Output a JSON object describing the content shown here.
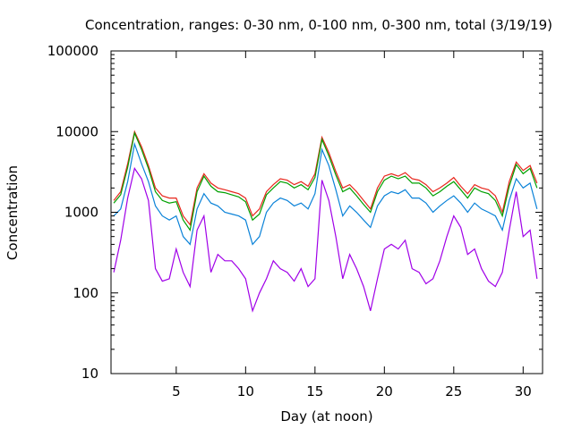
{
  "chart_data": {
    "type": "line",
    "title": "Concentration, ranges: 0-30 nm, 0-100 nm, 0-300 nm, total (3/19/19)",
    "xlabel": "Day (at noon)",
    "ylabel": "Concentration",
    "xlim": [
      0.3,
      31.4
    ],
    "ylim": [
      10,
      100000
    ],
    "yscale": "log",
    "grid": false,
    "legend": "none",
    "x_ticks": [
      5,
      10,
      15,
      20,
      25,
      30
    ],
    "y_ticks": [
      10,
      100,
      1000,
      10000,
      100000
    ],
    "x": [
      0.5,
      1.0,
      1.5,
      2.0,
      2.5,
      3.0,
      3.5,
      4.0,
      4.5,
      5.0,
      5.5,
      6.0,
      6.5,
      7.0,
      7.5,
      8.0,
      8.5,
      9.0,
      9.5,
      10.0,
      10.5,
      11.0,
      11.5,
      12.0,
      12.5,
      13.0,
      13.5,
      14.0,
      14.5,
      15.0,
      15.5,
      16.0,
      16.5,
      17.0,
      17.5,
      18.0,
      18.5,
      19.0,
      19.5,
      20.0,
      20.5,
      21.0,
      21.5,
      22.0,
      22.5,
      23.0,
      23.5,
      24.0,
      24.5,
      25.0,
      25.5,
      26.0,
      26.5,
      27.0,
      27.5,
      28.0,
      28.5,
      29.0,
      29.5,
      30.0,
      30.5,
      31.0
    ],
    "series": [
      {
        "color": "#e8261c",
        "values": [
          1400,
          1800,
          4000,
          10000,
          6500,
          3800,
          2000,
          1600,
          1500,
          1500,
          900,
          700,
          2000,
          3000,
          2300,
          2000,
          1900,
          1800,
          1700,
          1500,
          900,
          1100,
          1800,
          2200,
          2600,
          2500,
          2200,
          2400,
          2100,
          3000,
          8500,
          5500,
          3200,
          2000,
          2200,
          1800,
          1400,
          1100,
          2000,
          2800,
          3000,
          2800,
          3100,
          2600,
          2500,
          2200,
          1800,
          2000,
          2300,
          2700,
          2100,
          1700,
          2200,
          2000,
          1900,
          1600,
          1000,
          2400,
          4200,
          3300,
          3800,
          2300
        ]
      },
      {
        "color": "#00a000",
        "values": [
          1300,
          1650,
          3600,
          9600,
          6000,
          3500,
          1800,
          1400,
          1300,
          1350,
          800,
          600,
          1800,
          2800,
          2100,
          1800,
          1750,
          1650,
          1550,
          1350,
          800,
          950,
          1650,
          2000,
          2400,
          2300,
          2000,
          2200,
          1900,
          2700,
          8000,
          5000,
          2900,
          1800,
          2000,
          1600,
          1250,
          1000,
          1800,
          2500,
          2800,
          2600,
          2800,
          2300,
          2300,
          2000,
          1600,
          1800,
          2100,
          2400,
          1900,
          1500,
          2000,
          1800,
          1700,
          1400,
          900,
          2100,
          3900,
          3000,
          3500,
          2000
        ]
      },
      {
        "color": "#0a82d8",
        "values": [
          900,
          1100,
          2400,
          7000,
          4000,
          2400,
          1200,
          900,
          800,
          900,
          500,
          400,
          1100,
          1700,
          1300,
          1200,
          1000,
          950,
          900,
          800,
          400,
          500,
          1000,
          1300,
          1500,
          1400,
          1200,
          1300,
          1100,
          1700,
          6000,
          3800,
          1900,
          900,
          1200,
          1000,
          800,
          650,
          1200,
          1600,
          1800,
          1700,
          1900,
          1500,
          1500,
          1300,
          1000,
          1200,
          1400,
          1600,
          1300,
          1000,
          1300,
          1100,
          1000,
          900,
          600,
          1400,
          2600,
          2000,
          2300,
          1100
        ]
      },
      {
        "color": "#a000e8",
        "values": [
          180,
          450,
          1500,
          3500,
          2600,
          1400,
          200,
          140,
          150,
          350,
          180,
          120,
          600,
          900,
          180,
          300,
          250,
          250,
          200,
          150,
          60,
          100,
          150,
          250,
          200,
          180,
          140,
          200,
          120,
          150,
          2500,
          1400,
          500,
          150,
          300,
          200,
          120,
          60,
          150,
          350,
          400,
          350,
          450,
          200,
          180,
          130,
          150,
          250,
          500,
          900,
          650,
          300,
          350,
          200,
          140,
          120,
          180,
          600,
          1800,
          500,
          600,
          150
        ]
      }
    ]
  }
}
